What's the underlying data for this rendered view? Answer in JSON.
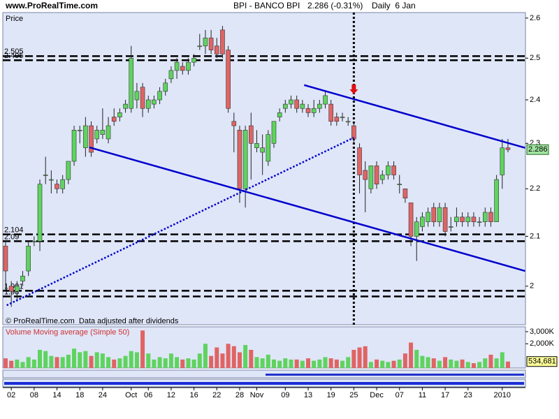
{
  "chart_data": [
    {
      "type": "candlestick",
      "site": "www.ProRealTime.com",
      "title": "BPI - BANCO BPI",
      "subtitle": "2.286 (-0.31%)",
      "period": "Daily  6 Jan",
      "y_label": "Price",
      "footnote": "© ProRealTime.com  Data adjusted after dividends",
      "log_scale": true,
      "grid": false,
      "up_color": "#5fd35f",
      "down_color": "#e06464",
      "ylim": [
        1.926,
        2.614
      ],
      "yticks": [
        2,
        2.1,
        2.2,
        2.3,
        2.4,
        2.5,
        2.6
      ],
      "categories": [
        null,
        "02",
        null,
        null,
        null,
        "08",
        null,
        null,
        null,
        "14",
        null,
        null,
        null,
        "18",
        null,
        null,
        null,
        "24",
        null,
        null,
        null,
        null,
        "Oct",
        null,
        null,
        "06",
        null,
        null,
        null,
        "12",
        null,
        null,
        null,
        "16",
        null,
        null,
        null,
        "22",
        null,
        null,
        null,
        "28",
        null,
        null,
        "Nov",
        null,
        null,
        null,
        null,
        "09",
        null,
        null,
        null,
        "13",
        null,
        null,
        null,
        "19",
        null,
        null,
        null,
        "25",
        null,
        null,
        null,
        "Dec",
        null,
        null,
        null,
        "07",
        null,
        null,
        null,
        "11",
        null,
        null,
        null,
        "17",
        null,
        null,
        null,
        "23",
        null,
        null,
        null,
        null,
        null,
        "2010",
        null
      ],
      "open": [
        2.08,
        2.0,
        1.99,
        2.01,
        2.03,
        2.09,
        2.09,
        2.23,
        2.22,
        2.21,
        2.2,
        2.22,
        2.26,
        2.33,
        2.29,
        2.34,
        2.31,
        2.32,
        2.31,
        2.36,
        2.36,
        2.38,
        2.38,
        2.4,
        2.43,
        2.38,
        2.39,
        2.4,
        2.42,
        2.45,
        2.47,
        2.48,
        2.47,
        2.49,
        2.53,
        2.53,
        2.55,
        2.53,
        2.57,
        2.52,
        2.35,
        2.33,
        2.2,
        2.34,
        2.29,
        2.28,
        2.26,
        2.3,
        2.36,
        2.38,
        2.39,
        2.4,
        2.38,
        2.38,
        2.37,
        2.38,
        2.39,
        2.39,
        2.36,
        2.36,
        2.35,
        2.34,
        2.29,
        2.24,
        2.2,
        2.25,
        2.22,
        2.23,
        2.25,
        2.21,
        2.2,
        2.17,
        2.1,
        2.12,
        2.13,
        2.16,
        2.13,
        2.16,
        2.12,
        2.13,
        2.14,
        2.13,
        2.14,
        2.13,
        2.13,
        2.15,
        2.13,
        2.23,
        2.29
      ],
      "high": [
        2.09,
        2.01,
        2.01,
        2.03,
        2.09,
        2.1,
        2.22,
        2.27,
        2.24,
        2.22,
        2.23,
        2.26,
        2.34,
        2.34,
        2.36,
        2.35,
        2.34,
        2.38,
        2.36,
        2.38,
        2.38,
        2.4,
        2.53,
        2.44,
        2.44,
        2.41,
        2.41,
        2.43,
        2.45,
        2.48,
        2.5,
        2.49,
        2.5,
        2.51,
        2.56,
        2.57,
        2.57,
        2.55,
        2.58,
        2.53,
        2.37,
        2.34,
        2.34,
        2.37,
        2.33,
        2.32,
        2.33,
        2.35,
        2.38,
        2.4,
        2.41,
        2.41,
        2.4,
        2.39,
        2.4,
        2.4,
        2.42,
        2.4,
        2.37,
        2.37,
        2.36,
        2.35,
        2.3,
        2.26,
        2.25,
        2.26,
        2.24,
        2.26,
        2.26,
        2.23,
        2.2,
        2.17,
        2.14,
        2.15,
        2.16,
        2.17,
        2.17,
        2.17,
        2.14,
        2.16,
        2.15,
        2.15,
        2.15,
        2.14,
        2.16,
        2.16,
        2.23,
        2.31,
        2.31
      ],
      "low": [
        1.99,
        1.96,
        1.97,
        2.0,
        2.02,
        2.08,
        2.07,
        2.21,
        2.19,
        2.19,
        2.19,
        2.21,
        2.25,
        2.3,
        2.27,
        2.27,
        2.3,
        2.31,
        2.3,
        2.34,
        2.35,
        2.37,
        2.37,
        2.38,
        2.36,
        2.37,
        2.38,
        2.39,
        2.41,
        2.44,
        2.45,
        2.46,
        2.46,
        2.48,
        2.52,
        2.51,
        2.51,
        2.5,
        2.5,
        2.37,
        2.28,
        2.17,
        2.16,
        2.22,
        2.28,
        2.23,
        2.25,
        2.29,
        2.35,
        2.37,
        2.38,
        2.37,
        2.37,
        2.36,
        2.36,
        2.37,
        2.38,
        2.34,
        2.34,
        2.35,
        2.34,
        2.3,
        2.19,
        2.15,
        2.19,
        2.2,
        2.21,
        2.22,
        2.22,
        2.19,
        2.17,
        2.08,
        2.05,
        2.11,
        2.12,
        2.12,
        2.12,
        2.1,
        2.11,
        2.12,
        2.12,
        2.12,
        2.12,
        2.12,
        2.12,
        2.12,
        2.13,
        2.2,
        2.28
      ],
      "close": [
        2.03,
        1.99,
        2.0,
        2.02,
        2.08,
        2.09,
        2.21,
        2.23,
        2.22,
        2.2,
        2.22,
        2.26,
        2.33,
        2.33,
        2.34,
        2.28,
        2.33,
        2.33,
        2.34,
        2.35,
        2.37,
        2.39,
        2.5,
        2.42,
        2.38,
        2.4,
        2.4,
        2.42,
        2.44,
        2.47,
        2.49,
        2.47,
        2.49,
        2.5,
        2.53,
        2.55,
        2.52,
        2.51,
        2.51,
        2.38,
        2.34,
        2.2,
        2.33,
        2.3,
        2.3,
        2.29,
        2.32,
        2.35,
        2.37,
        2.39,
        2.4,
        2.38,
        2.39,
        2.37,
        2.38,
        2.39,
        2.41,
        2.35,
        2.35,
        2.36,
        2.35,
        2.31,
        2.23,
        2.22,
        2.25,
        2.21,
        2.23,
        2.25,
        2.23,
        2.21,
        2.18,
        2.1,
        2.13,
        2.14,
        2.15,
        2.13,
        2.16,
        2.11,
        2.12,
        2.14,
        2.13,
        2.14,
        2.13,
        2.13,
        2.15,
        2.13,
        2.22,
        2.29,
        2.286
      ],
      "levels": [
        2.505,
        2.495,
        2.104,
        2.09,
        1.991,
        1.98
      ],
      "trendlines": [
        {
          "x": [
            14.7,
            91
          ],
          "y": [
            2.291,
            2.03
          ],
          "color": "#0000cc",
          "style": "solid"
        },
        {
          "x": [
            52.3,
            91
          ],
          "y": [
            2.435,
            2.29
          ],
          "color": "#0000cc",
          "style": "solid"
        },
        {
          "x": [
            0.2,
            61
          ],
          "y": [
            1.963,
            2.313
          ],
          "color": "#0000cc",
          "style": "dotted"
        }
      ],
      "marker_index": 61
    },
    {
      "type": "bar",
      "title": "Volume Moving average (Simple 50)",
      "ylim": [
        0,
        3400000
      ],
      "yticks": [
        {
          "value": 3000000,
          "label": "3,000K"
        },
        {
          "value": 2000000,
          "label": "2,000K"
        }
      ],
      "values": [
        800000,
        600000,
        700000,
        500000,
        900000,
        700000,
        1500000,
        1400000,
        1000000,
        900000,
        900000,
        1100000,
        1600000,
        1300000,
        1400000,
        1000000,
        1300000,
        1200000,
        900000,
        700000,
        800000,
        1000000,
        1400000,
        1300000,
        3100000,
        1200000,
        700000,
        900000,
        800000,
        1200000,
        900000,
        700000,
        800000,
        700000,
        1200000,
        2000000,
        1000000,
        1700000,
        1200000,
        2000000,
        1800000,
        1300000,
        1900000,
        1500000,
        900000,
        800000,
        1100000,
        700000,
        600000,
        800000,
        700000,
        700000,
        600000,
        800000,
        600000,
        700000,
        900000,
        800000,
        700000,
        600000,
        900000,
        1500000,
        1700000,
        1800000,
        500000,
        700000,
        600000,
        500000,
        600000,
        700000,
        1200000,
        2100000,
        1500000,
        1000000,
        900000,
        800000,
        600000,
        900000,
        700000,
        600000,
        700000,
        500000,
        400000,
        500000,
        800000,
        1100000,
        800000,
        1300000,
        534681
      ],
      "value_labels": [
        null,
        null,
        null,
        null,
        null,
        null,
        null,
        null,
        null,
        null,
        null,
        null,
        null,
        null,
        null,
        null,
        null,
        null,
        null,
        null,
        null,
        null,
        null,
        null,
        null,
        null,
        null,
        null,
        null,
        null,
        null,
        null,
        null,
        null,
        null,
        null,
        null,
        null,
        null,
        null,
        null,
        null,
        null,
        null,
        null,
        null,
        null,
        null,
        null,
        null,
        null,
        null,
        null,
        null,
        null,
        null,
        null,
        null,
        null,
        null,
        null,
        null,
        null,
        null,
        null,
        null,
        null,
        null,
        null,
        null,
        null,
        null,
        null,
        null,
        null,
        null,
        null,
        null,
        null,
        null,
        null,
        null,
        null,
        null,
        null,
        null,
        null,
        null,
        "534,681"
      ]
    }
  ]
}
